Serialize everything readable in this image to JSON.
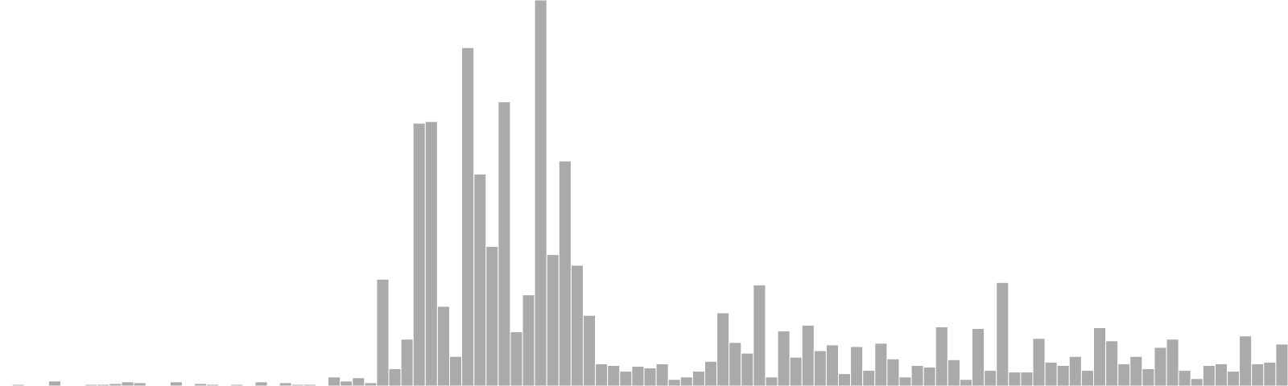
{
  "chart_data": {
    "type": "bar",
    "title": "",
    "xlabel": "",
    "ylabel": "",
    "grid": false,
    "legend": "none",
    "bar_color": "#aaaaaa",
    "ylim": [
      0,
      470
    ],
    "values": [
      1,
      2,
      1,
      1,
      6,
      0,
      1,
      2,
      2,
      3,
      5,
      4,
      1,
      0,
      5,
      1,
      3,
      2,
      1,
      2,
      1,
      5,
      1,
      4,
      2,
      2,
      0,
      11,
      6,
      10,
      4,
      130,
      21,
      57,
      320,
      322,
      97,
      36,
      412,
      258,
      170,
      346,
      66,
      111,
      470,
      160,
      274,
      147,
      86,
      27,
      25,
      18,
      24,
      22,
      27,
      8,
      11,
      18,
      30,
      89,
      53,
      40,
      123,
      11,
      67,
      35,
      74,
      43,
      50,
      15,
      48,
      19,
      52,
      33,
      11,
      25,
      23,
      72,
      32,
      8,
      70,
      19,
      126,
      17,
      17,
      58,
      29,
      25,
      36,
      19,
      71,
      55,
      27,
      36,
      21,
      47,
      57,
      19,
      9,
      25,
      27,
      18,
      61,
      27,
      29,
      51
    ]
  }
}
